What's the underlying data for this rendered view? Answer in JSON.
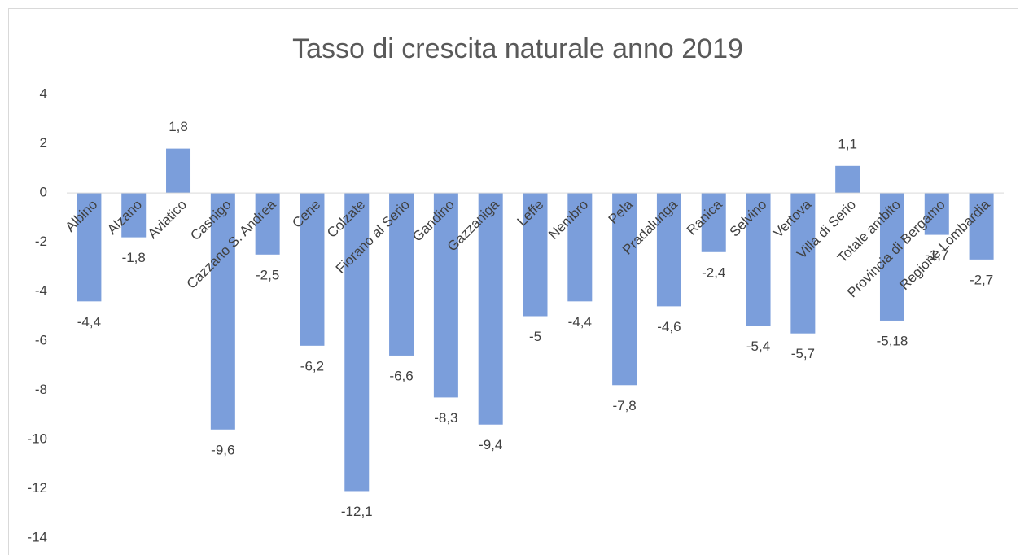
{
  "chart_data": {
    "type": "bar",
    "title": "Tasso di crescita naturale anno 2019",
    "categories": [
      "Albino",
      "Alzano",
      "Aviatico",
      "Casnigo",
      "Cazzano S. Andrea",
      "Cene",
      "Colzate",
      "Fiorano al Serio",
      "Gandino",
      "Gazzaniga",
      "Leffe",
      "Nembro",
      "Pela",
      "Pradalunga",
      "Ranica",
      "Selvino",
      "Vertova",
      "Villa di Serio",
      "Totale ambito",
      "Provincia di Bergamo",
      "Regione Lombardia"
    ],
    "values": [
      -4.4,
      -1.8,
      1.8,
      -9.6,
      -2.5,
      -6.2,
      -12.1,
      -6.6,
      -8.3,
      -9.4,
      -5,
      -4.4,
      -7.8,
      -4.6,
      -2.4,
      -5.4,
      -5.7,
      1.1,
      -5.18,
      -1.7,
      -2.7
    ],
    "value_labels": [
      "-4,4",
      "-1,8",
      "1,8",
      "-9,6",
      "-2,5",
      "-6,2",
      "-12,1",
      "-6,6",
      "-8,3",
      "-9,4",
      "-5",
      "-4,4",
      "-7,8",
      "-4,6",
      "-2,4",
      "-5,4",
      "-5,7",
      "1,1",
      "-5,18",
      "-1,7",
      "-2,7"
    ],
    "color": "#7b9edb",
    "ylim": [
      -14,
      4
    ],
    "yticks": [
      -14,
      -12,
      -10,
      -8,
      -6,
      -4,
      -2,
      0,
      2,
      4
    ],
    "grid": false
  }
}
